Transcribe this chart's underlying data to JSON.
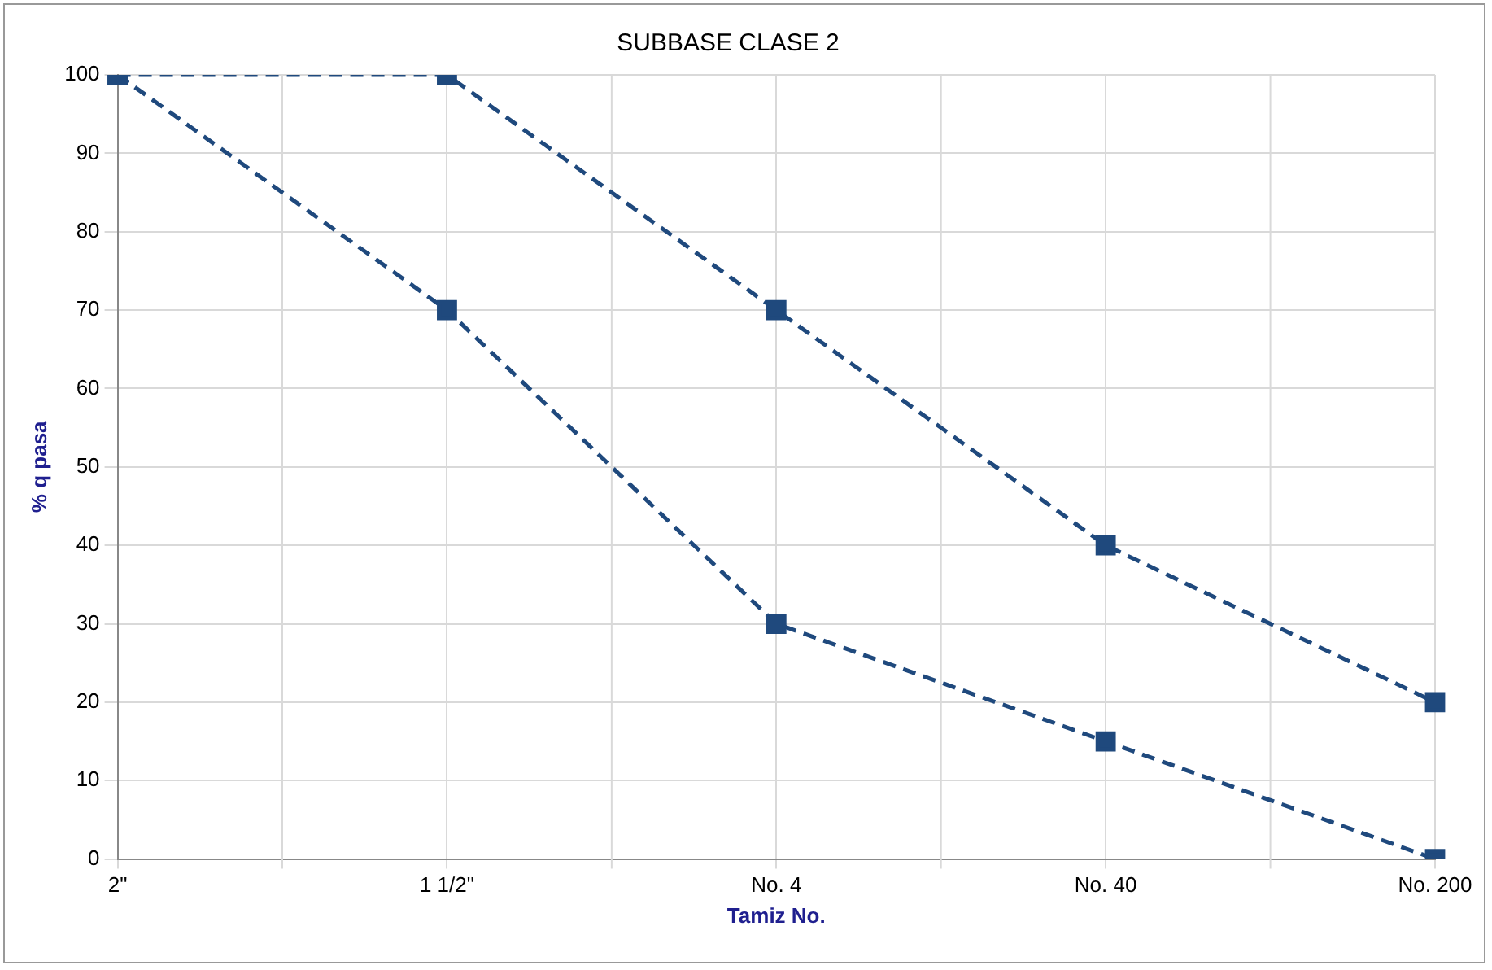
{
  "chart_data": {
    "type": "line",
    "title": "SUBBASE CLASE 2",
    "xlabel": "Tamiz No.",
    "ylabel": "% q pasa",
    "categories": [
      "2\"",
      "1 1/2\"",
      "No. 4",
      "No. 40",
      "No. 200"
    ],
    "series": [
      {
        "color": "#1f497d",
        "values": [
          100,
          100,
          70,
          40,
          20
        ]
      },
      {
        "color": "#1f497d",
        "values": [
          100,
          70,
          30,
          15,
          0
        ]
      }
    ],
    "ylim": [
      0,
      100
    ],
    "yticks": [
      0,
      10,
      20,
      30,
      40,
      50,
      60,
      70,
      80,
      90,
      100
    ],
    "grid": true,
    "legend": false,
    "marker": "square",
    "line_style": "dashed"
  }
}
